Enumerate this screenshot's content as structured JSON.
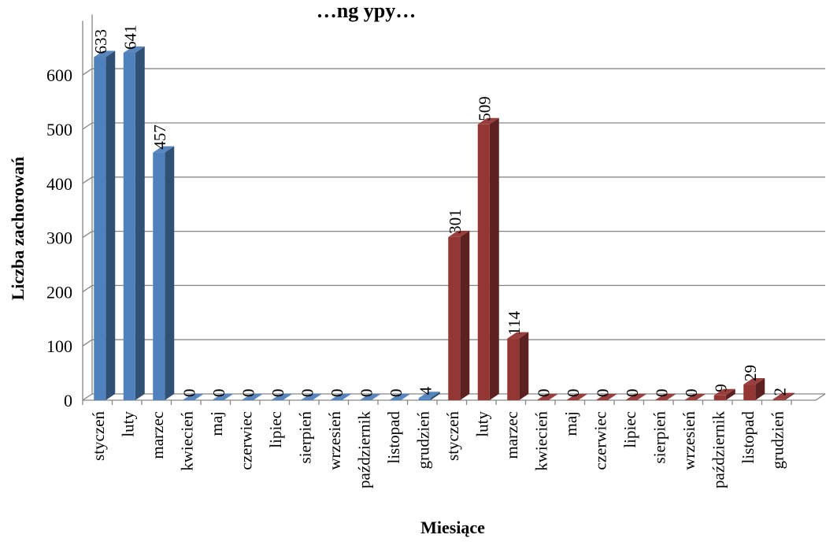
{
  "chart_data": {
    "type": "bar",
    "title": "…ng ypy…",
    "xlabel": "Miesiące",
    "ylabel": "Liczba zachorowań",
    "ylim": [
      0,
      700
    ],
    "yticks": [
      0,
      100,
      200,
      300,
      400,
      500,
      600
    ],
    "categories": [
      "styczeń",
      "luty",
      "marzec",
      "kwiecień",
      "maj",
      "czerwiec",
      "lipiec",
      "sierpień",
      "wrzesień",
      "październik",
      "listopad",
      "grudzień",
      "styczeń",
      "luty",
      "marzec",
      "kwiecień",
      "maj",
      "czerwiec",
      "lipiec",
      "sierpień",
      "wrzesień",
      "październik",
      "listopad",
      "grudzień"
    ],
    "series": [
      {
        "color": "#4F81BD",
        "values": [
          633,
          641,
          457,
          0,
          0,
          0,
          0,
          0,
          0,
          0,
          0,
          4,
          null,
          null,
          null,
          null,
          null,
          null,
          null,
          null,
          null,
          null,
          null,
          null
        ]
      },
      {
        "color": "#943634",
        "values": [
          null,
          null,
          null,
          null,
          null,
          null,
          null,
          null,
          null,
          null,
          null,
          null,
          301,
          509,
          114,
          0,
          0,
          0,
          0,
          0,
          0,
          9,
          29,
          2
        ]
      }
    ],
    "grid": true,
    "legend": "none",
    "bar_style": "3d"
  }
}
